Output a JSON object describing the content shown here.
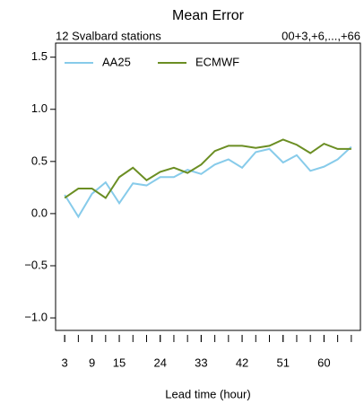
{
  "chart_data": {
    "type": "line",
    "title": "Mean Error",
    "subtitle_left": "12 Svalbard stations",
    "subtitle_right": "00+3,+6,...,+66",
    "x_label": "Lead time (hour)",
    "x": [
      3,
      6,
      9,
      12,
      15,
      18,
      21,
      24,
      27,
      30,
      33,
      36,
      39,
      42,
      45,
      48,
      51,
      54,
      57,
      60,
      63,
      66
    ],
    "series": [
      {
        "name": "AA25",
        "color": "#87cbea",
        "values": [
          0.18,
          -0.03,
          0.19,
          0.3,
          0.1,
          0.29,
          0.27,
          0.35,
          0.35,
          0.42,
          0.38,
          0.47,
          0.52,
          0.44,
          0.59,
          0.62,
          0.49,
          0.56,
          0.41,
          0.45,
          0.52,
          0.64
        ]
      },
      {
        "name": "ECMWF",
        "color": "#6b8e23",
        "values": [
          0.15,
          0.24,
          0.24,
          0.15,
          0.35,
          0.44,
          0.32,
          0.4,
          0.44,
          0.39,
          0.47,
          0.6,
          0.65,
          0.65,
          0.63,
          0.65,
          0.71,
          0.66,
          0.58,
          0.67,
          0.62,
          0.62
        ]
      }
    ],
    "xlim": [
      1,
      68
    ],
    "xticks": [
      3,
      9,
      15,
      24,
      33,
      42,
      51,
      60
    ],
    "xminor_ticks": [
      3,
      6,
      9,
      12,
      15,
      18,
      21,
      24,
      27,
      30,
      33,
      36,
      39,
      42,
      45,
      48,
      51,
      54,
      57,
      60,
      63,
      66
    ],
    "ylim": [
      -1.12,
      1.635
    ],
    "yticks": [
      {
        "value": -1.0,
        "label": "−1.0"
      },
      {
        "value": -0.5,
        "label": "−0.5"
      },
      {
        "value": 0.0,
        "label": "0.0"
      },
      {
        "value": 0.5,
        "label": "0.5"
      },
      {
        "value": 1.0,
        "label": "1.0"
      },
      {
        "value": 1.5,
        "label": "1.5"
      }
    ],
    "legend": "top-left"
  }
}
